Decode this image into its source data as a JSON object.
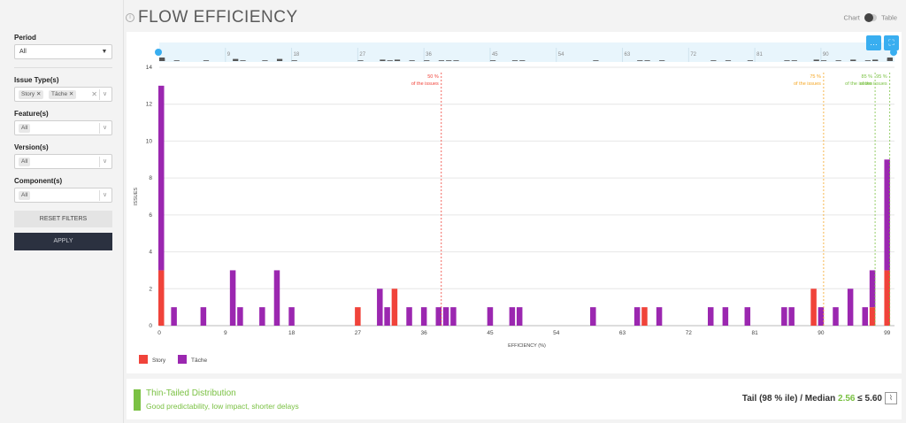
{
  "page": {
    "title": "FLOW EFFICIENCY",
    "toggle": {
      "chart_label": "Chart",
      "table_label": "Table"
    }
  },
  "filters": {
    "period": {
      "label": "Period",
      "value": "All"
    },
    "issue_types": {
      "label": "Issue Type(s)",
      "chips": [
        "Story",
        "Tâche"
      ]
    },
    "feature": {
      "label": "Feature(s)",
      "value": "All"
    },
    "version": {
      "label": "Version(s)",
      "value": "All"
    },
    "component": {
      "label": "Component(s)",
      "value": "All"
    },
    "reset_label": "RESET FILTERS",
    "apply_label": "APPLY"
  },
  "summary": {
    "distribution_title": "Thin-Tailed Distribution",
    "distribution_subtitle": "Good predictability, low impact, shorter delays",
    "tail_text": "Tail (98 % ile) / Median",
    "median_value": "2.56",
    "tail_compare": "≤ 5.60"
  },
  "colors": {
    "story": "#f0433a",
    "tache": "#9b27b0",
    "p50": "#f0433a",
    "p75": "#f5a623",
    "p85": "#7ac143",
    "p95": "#7ac143",
    "accent": "#39aef0"
  },
  "chart_data": {
    "type": "bar",
    "stacked": true,
    "xlabel": "EFFICIENCY (%)",
    "ylabel": "ISSUES",
    "xlim": [
      0,
      100
    ],
    "ylim": [
      0,
      14
    ],
    "x_ticks": [
      0,
      9,
      18,
      27,
      36,
      45,
      54,
      63,
      72,
      81,
      90,
      99
    ],
    "y_ticks": [
      0,
      2,
      4,
      6,
      8,
      10,
      12,
      14
    ],
    "series": [
      {
        "name": "Story",
        "points": [
          [
            0,
            3
          ],
          [
            27,
            1
          ],
          [
            32,
            2
          ],
          [
            66,
            1
          ],
          [
            89,
            2
          ],
          [
            97,
            1
          ],
          [
            99,
            3
          ]
        ]
      },
      {
        "name": "Tâche",
        "points": [
          [
            0,
            10
          ],
          [
            2,
            1
          ],
          [
            6,
            1
          ],
          [
            10,
            3
          ],
          [
            11,
            1
          ],
          [
            14,
            1
          ],
          [
            16,
            3
          ],
          [
            18,
            1
          ],
          [
            30,
            2
          ],
          [
            31,
            1
          ],
          [
            34,
            1
          ],
          [
            36,
            1
          ],
          [
            38,
            1
          ],
          [
            39,
            1
          ],
          [
            40,
            1
          ],
          [
            45,
            1
          ],
          [
            48,
            1
          ],
          [
            49,
            1
          ],
          [
            59,
            1
          ],
          [
            65,
            1
          ],
          [
            68,
            1
          ],
          [
            75,
            1
          ],
          [
            77,
            1
          ],
          [
            80,
            1
          ],
          [
            85,
            1
          ],
          [
            86,
            1
          ],
          [
            90,
            1
          ],
          [
            92,
            1
          ],
          [
            94,
            2
          ],
          [
            96,
            1
          ],
          [
            97,
            2
          ],
          [
            99,
            6
          ]
        ]
      }
    ],
    "percentiles": [
      {
        "value": 38,
        "label_pct": "50 %",
        "label_text": "of the issues"
      },
      {
        "value": 90,
        "label_pct": "75 %",
        "label_text": "of the issues"
      },
      {
        "value": 97,
        "label_pct": "85 %",
        "label_text": "of the issues"
      },
      {
        "value": 99,
        "label_pct": "95 %",
        "label_text": "of the issues"
      }
    ],
    "overview_ticks": [
      9,
      18,
      27,
      36,
      45,
      54,
      63,
      72,
      81,
      90
    ]
  }
}
